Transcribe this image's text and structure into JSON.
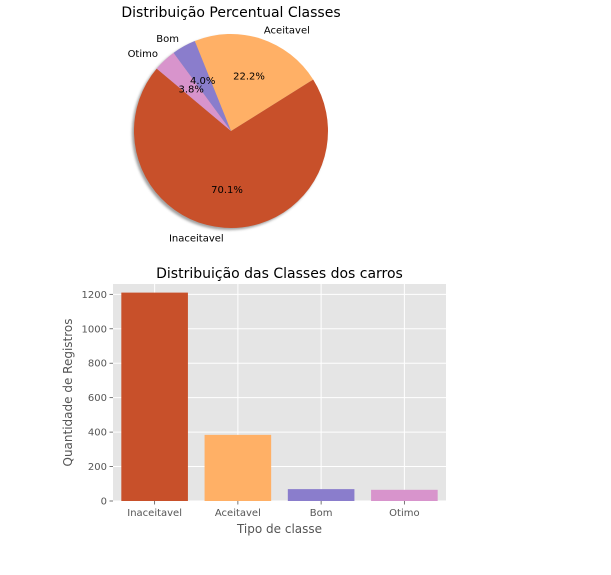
{
  "chart_data": [
    {
      "type": "pie",
      "title": "Distribuição Percentual Classes",
      "categories": [
        "Inaceitavel",
        "Aceitavel",
        "Bom",
        "Otimo"
      ],
      "values": [
        70.1,
        22.2,
        4.0,
        3.8
      ],
      "percent_labels": [
        "70.1%",
        "22.2%",
        "4.0%",
        "3.8%"
      ],
      "colors": [
        "#c8502a",
        "#ffb066",
        "#8a7dcc",
        "#d894cc"
      ],
      "shadow": true
    },
    {
      "type": "bar",
      "title": "Distribuição das Classes dos carros",
      "xlabel": "Tipo de classe",
      "ylabel": "Quantidade de Registros",
      "categories": [
        "Inaceitavel",
        "Aceitavel",
        "Bom",
        "Otimo"
      ],
      "values": [
        1210,
        384,
        69,
        65
      ],
      "colors": [
        "#c8502a",
        "#ffb066",
        "#8a7dcc",
        "#d894cc"
      ],
      "ylim": [
        0,
        1260
      ],
      "yticks": [
        0,
        200,
        400,
        600,
        800,
        1000,
        1200
      ],
      "grid": true,
      "background": "#e5e5e5"
    }
  ]
}
